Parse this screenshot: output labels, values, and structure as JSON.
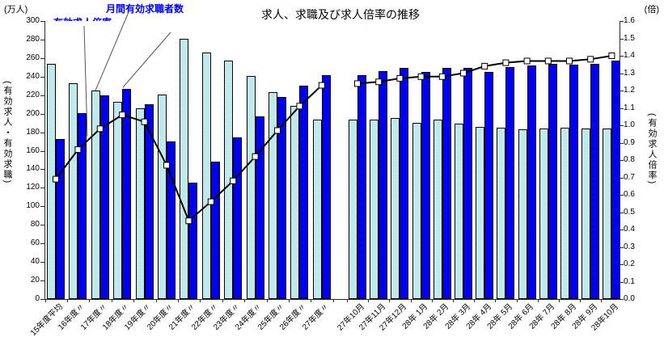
{
  "title": "求人、求職及び求人倍率の推移",
  "axis_captions": {
    "left_top": "(万人)",
    "right_top": "(倍)",
    "left_vertical": "(有効求人・有効求職)",
    "right_vertical": "(有効求人倍率)"
  },
  "annotations": [
    {
      "label": "有効求人倍率"
    },
    {
      "label": "月間有効求職者数"
    },
    {
      "label": "月間有効求人数"
    }
  ],
  "chart_data": {
    "type": "bar",
    "subtype": "grouped-bars-with-line-overlay",
    "title": "求人、求職及び求人倍率の推移",
    "grid": false,
    "legend_position": "callout-annotations-top-left",
    "categories": [
      "15年度平均",
      "16年度〃",
      "17年度〃",
      "18年度〃",
      "19年度〃",
      "20年度〃",
      "21年度〃",
      "22年度〃",
      "23年度〃",
      "24年度〃",
      "25年度〃",
      "26年度〃",
      "27年度〃",
      "27年10月",
      "27年11月",
      "27年12月",
      "28年 1月",
      "28年 2月",
      "28年 3月",
      "28年 4月",
      "28年 5月",
      "28年 6月",
      "28年 7月",
      "28年 8月",
      "28年 9月",
      "28年10月"
    ],
    "group_break_after_index": 12,
    "series": [
      {
        "name": "月間有効求職者数",
        "type": "bar",
        "axis": "left",
        "style": "light-cyan-pattern",
        "color": "#bfe9ec",
        "values": [
          254,
          233,
          225,
          213,
          206,
          221,
          281,
          266,
          257,
          241,
          223,
          208,
          194,
          194,
          194,
          195,
          190,
          194,
          189,
          186,
          185,
          183,
          184,
          185,
          184,
          184
        ]
      },
      {
        "name": "月間有効求人数",
        "type": "bar",
        "axis": "left",
        "style": "solid-blue",
        "color": "#0000ee",
        "values": [
          173,
          201,
          220,
          227,
          210,
          170,
          126,
          148,
          174,
          197,
          218,
          230,
          242,
          242,
          246,
          249,
          245,
          249,
          249,
          245,
          250,
          252,
          254,
          253,
          254,
          257
        ]
      },
      {
        "name": "有効求人倍率",
        "type": "line",
        "axis": "right",
        "color": "#000000",
        "marker": "white-square",
        "values": [
          0.69,
          0.86,
          0.98,
          1.06,
          1.02,
          0.77,
          0.45,
          0.56,
          0.68,
          0.82,
          0.97,
          1.11,
          1.23,
          1.24,
          1.25,
          1.27,
          1.28,
          1.28,
          1.3,
          1.34,
          1.36,
          1.37,
          1.37,
          1.37,
          1.38,
          1.4
        ]
      }
    ],
    "left_axis": {
      "unit": "(万人)",
      "title": "(有効求人・有効求職)",
      "min": 0,
      "max": 300,
      "step": 20
    },
    "right_axis": {
      "unit": "(倍)",
      "title": "(有効求人倍率)",
      "min": 0,
      "max": 1.6,
      "step": 0.1
    }
  }
}
